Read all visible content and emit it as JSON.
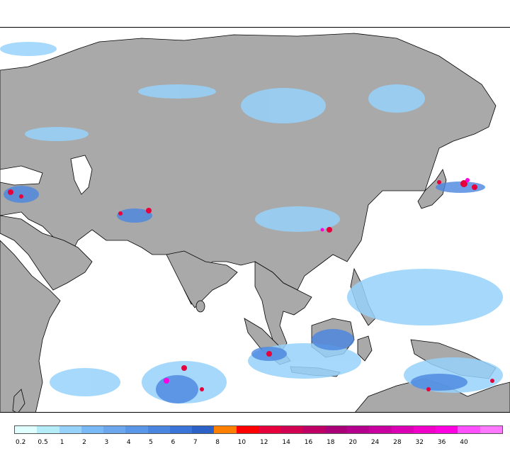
{
  "map": {
    "colors": {
      "ocean": "#ffffff",
      "land": "#a9a9a9",
      "coastline": "#000000"
    }
  },
  "legend": {
    "steps": [
      {
        "label": "0.2",
        "color": "#e0ffff"
      },
      {
        "label": "0.5",
        "color": "#b4ecf7"
      },
      {
        "label": "1",
        "color": "#96d2fa"
      },
      {
        "label": "2",
        "color": "#78b9f6"
      },
      {
        "label": "3",
        "color": "#6ca7ee"
      },
      {
        "label": "4",
        "color": "#5b97e8"
      },
      {
        "label": "5",
        "color": "#4a86e0"
      },
      {
        "label": "6",
        "color": "#3a74d8"
      },
      {
        "label": "7",
        "color": "#2c62c8"
      },
      {
        "label": "8",
        "color": "#ff7f00"
      },
      {
        "label": "10",
        "color": "#ff0000"
      },
      {
        "label": "12",
        "color": "#e6003c"
      },
      {
        "label": "14",
        "color": "#d20050"
      },
      {
        "label": "16",
        "color": "#be0064"
      },
      {
        "label": "18",
        "color": "#aa0078"
      },
      {
        "label": "20",
        "color": "#b4008c"
      },
      {
        "label": "24",
        "color": "#c800a0"
      },
      {
        "label": "28",
        "color": "#dc00b4"
      },
      {
        "label": "32",
        "color": "#f000c8"
      },
      {
        "label": "36",
        "color": "#ff00e0"
      },
      {
        "label": "40",
        "color": "#ff50ff"
      },
      {
        "label": "",
        "color": "#ff78ff"
      }
    ]
  }
}
